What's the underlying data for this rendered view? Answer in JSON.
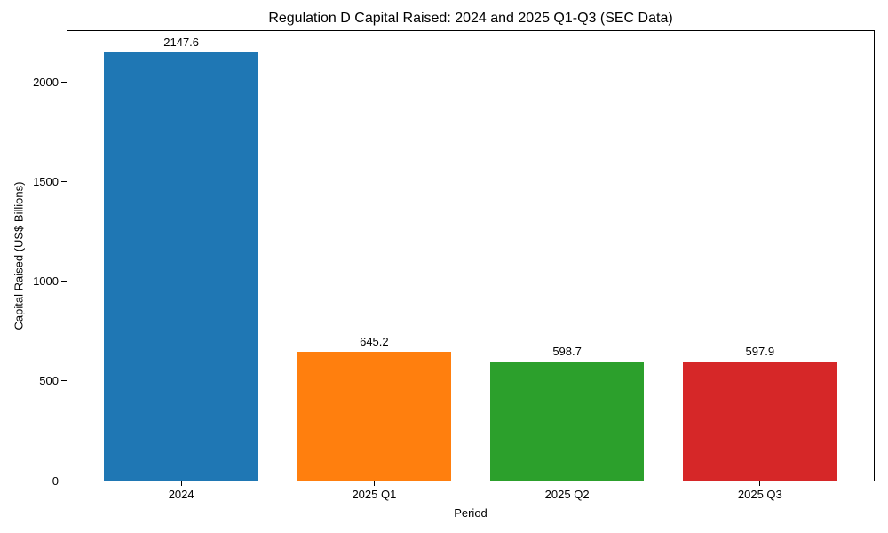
{
  "chart_data": {
    "type": "bar",
    "title": "Regulation D Capital Raised: 2024 and 2025 Q1-Q3 (SEC Data)",
    "xlabel": "Period",
    "ylabel": "Capital Raised (US$ Billions)",
    "categories": [
      "2024",
      "2025 Q1",
      "2025 Q2",
      "2025 Q3"
    ],
    "values": [
      2147.6,
      645.2,
      598.7,
      597.9
    ],
    "value_labels": [
      "2147.6",
      "645.2",
      "598.7",
      "597.9"
    ],
    "bar_colors": [
      "#1f77b4",
      "#ff7f0e",
      "#2ca02c",
      "#d62728"
    ],
    "yticks": [
      0,
      500,
      1000,
      1500,
      2000
    ],
    "ylim": [
      0,
      2255
    ],
    "bar_width_fraction": 0.8,
    "grid": false,
    "legend": null,
    "background_color": "#ffffff",
    "spine_color": "#000000"
  }
}
